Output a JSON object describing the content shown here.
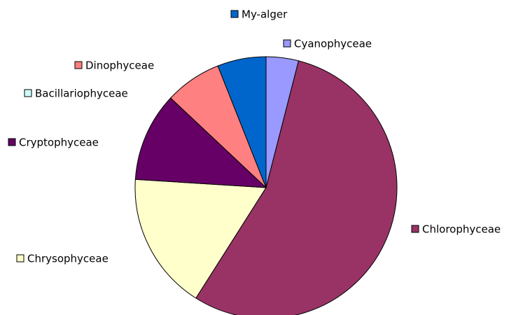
{
  "chart_data": {
    "type": "pie",
    "categories": [
      "Cyanophyceae",
      "Chlorophyceae",
      "Chrysophyceae",
      "Cryptophyceae",
      "Bacillariophyceae",
      "Dinophyceae",
      "My-alger"
    ],
    "values": [
      4,
      55,
      17,
      11,
      0,
      7,
      6
    ],
    "colors": [
      "#9999ff",
      "#993366",
      "#ffffcc",
      "#660066",
      "#ccffff",
      "#ff8080",
      "#0066cc"
    ]
  }
}
